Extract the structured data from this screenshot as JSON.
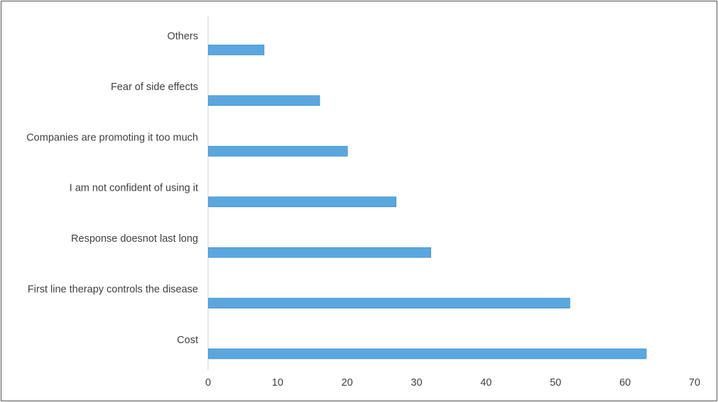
{
  "chart_data": {
    "type": "bar",
    "orientation": "horizontal",
    "categories": [
      "Cost",
      "First line therapy controls the disease",
      "Response doesnot last long",
      "I am not confident of using it",
      "Companies are promoting it too much",
      "Fear of side effects",
      "Others"
    ],
    "values": [
      63,
      52,
      32,
      27,
      20,
      16,
      8
    ],
    "xlim": [
      0,
      70
    ],
    "xticks": [
      0,
      10,
      20,
      30,
      40,
      50,
      60,
      70
    ],
    "grid": false,
    "bar_color": "#5aa7e0",
    "bar_edge_color": "#3d8fcc",
    "axis_color": "#d0d0d0"
  }
}
